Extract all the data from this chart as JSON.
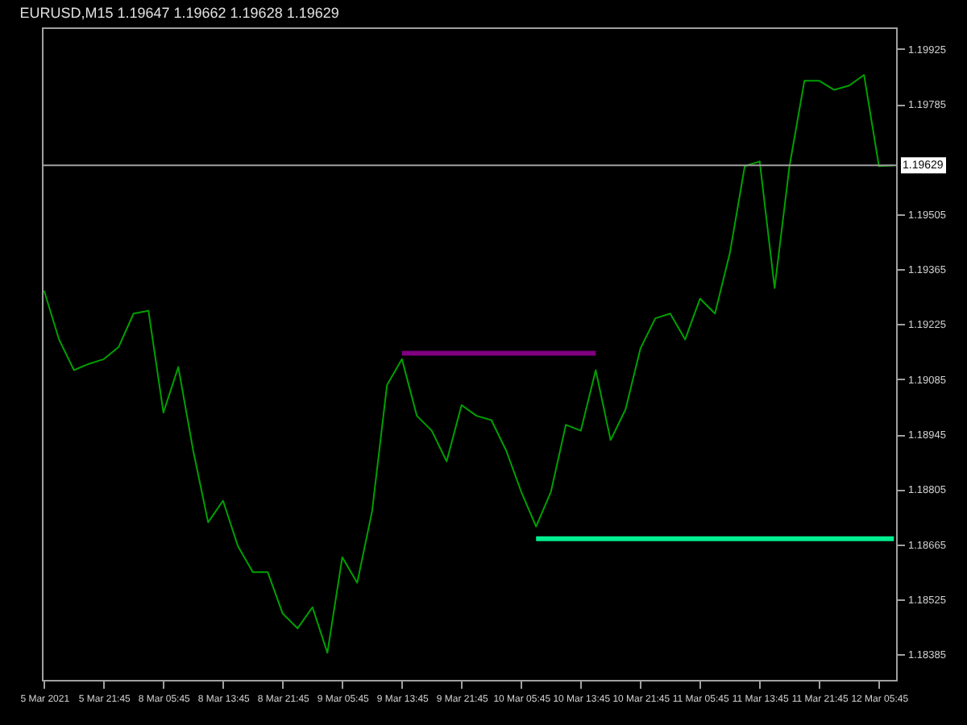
{
  "chart_data": {
    "type": "line",
    "title": "EURUSD,M15  1.19647 1.19662 1.19628 1.19629",
    "categories": [
      "5 Mar 2021",
      null,
      null,
      null,
      "5 Mar 21:45",
      null,
      null,
      null,
      "8 Mar 05:45",
      null,
      null,
      null,
      "8 Mar 13:45",
      null,
      null,
      null,
      "8 Mar 21:45",
      null,
      null,
      null,
      "9 Mar 05:45",
      null,
      null,
      null,
      "9 Mar 13:45",
      null,
      null,
      null,
      "9 Mar 21:45",
      null,
      null,
      null,
      "10 Mar 05:45",
      null,
      null,
      null,
      "10 Mar 13:45",
      null,
      null,
      null,
      "10 Mar 21:45",
      null,
      null,
      null,
      "11 Mar 05:45",
      null,
      null,
      null,
      "11 Mar 13:45",
      null,
      null,
      null,
      "11 Mar 21:45",
      null,
      null,
      null,
      "12 Mar 05:45",
      null
    ],
    "ylim": [
      1.1832,
      1.1998
    ],
    "yticks": [
      1.18385,
      1.18525,
      1.18665,
      1.18805,
      1.18945,
      1.19085,
      1.19225,
      1.19365,
      1.19505,
      1.19785,
      1.19925
    ],
    "grid": false,
    "marker": "none",
    "line_style": "solid",
    "series": [
      {
        "color": "#00a000",
        "values": [
          1.1931,
          1.19186,
          1.19108,
          1.19124,
          1.19136,
          1.19167,
          1.19252,
          1.19259,
          1.19,
          1.19116,
          1.18903,
          1.18721,
          1.18776,
          1.1866,
          1.18594,
          1.18594,
          1.18489,
          1.18451,
          1.18505,
          1.18389,
          1.18632,
          1.18567,
          1.18749,
          1.1907,
          1.19136,
          1.18992,
          1.18954,
          1.18876,
          1.19019,
          1.18992,
          1.18981,
          1.18903,
          1.18799,
          1.1871,
          1.18799,
          1.18969,
          1.18954,
          1.19108,
          1.1893,
          1.19008,
          1.19163,
          1.1924,
          1.19252,
          1.19186,
          1.1929,
          1.19252,
          1.19406,
          1.19627,
          1.19639,
          1.19317,
          1.19627,
          1.19844,
          1.19844,
          1.19821,
          1.19832,
          1.19859,
          1.19627,
          1.19629
        ]
      },
      {
        "color": "#800080",
        "values": [
          null,
          null,
          null,
          null,
          null,
          null,
          null,
          null,
          null,
          null,
          null,
          null,
          null,
          null,
          null,
          null,
          null,
          null,
          null,
          null,
          null,
          null,
          null,
          null,
          1.19151,
          1.19151,
          1.19151,
          1.19151,
          1.19151,
          1.19151,
          1.19151,
          1.19151,
          1.19151,
          1.19151,
          1.19151,
          1.19151,
          1.19151,
          1.19151,
          null,
          null,
          null,
          null,
          null,
          null,
          null,
          null,
          null,
          null,
          null,
          null,
          null,
          null,
          null,
          null,
          null,
          null,
          null,
          null
        ]
      },
      {
        "color": "#00f090",
        "values": [
          null,
          null,
          null,
          null,
          null,
          null,
          null,
          null,
          null,
          null,
          null,
          null,
          null,
          null,
          null,
          null,
          null,
          null,
          null,
          null,
          null,
          null,
          null,
          null,
          null,
          null,
          null,
          null,
          null,
          null,
          null,
          null,
          null,
          1.18679,
          1.18679,
          1.18679,
          1.18679,
          1.18679,
          1.18679,
          1.18679,
          1.18679,
          1.18679,
          1.18679,
          1.18679,
          1.18679,
          1.18679,
          1.18679,
          1.18679,
          1.18679,
          1.18679,
          1.18679,
          1.18679,
          1.18679,
          1.18679,
          1.18679,
          1.18679,
          1.18679,
          1.18679
        ]
      }
    ],
    "ref_lines": [
      {
        "axis": "y",
        "value": 1.19629,
        "label": "1.19629",
        "color": "#a0a0a0"
      }
    ]
  }
}
